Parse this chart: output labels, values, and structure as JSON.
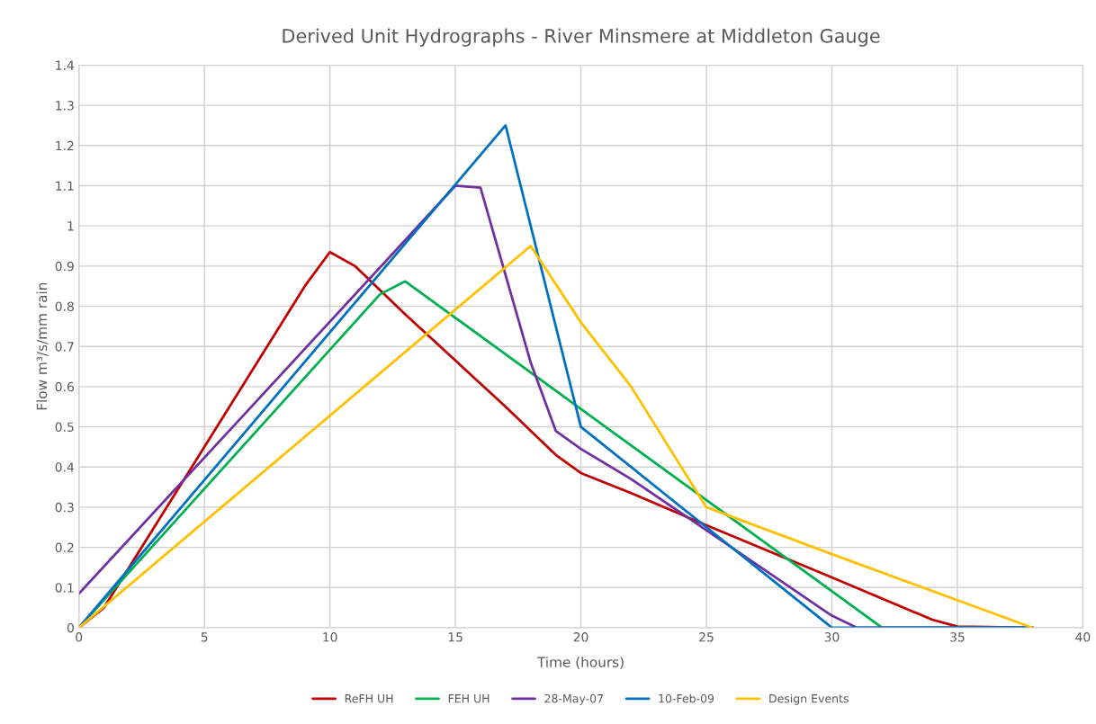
{
  "chart_data": {
    "type": "line",
    "title": "Derived Unit Hydrographs - River Minsmere at Middleton Gauge",
    "xlabel": "Time (hours)",
    "ylabel": "Flow m³/s/mm rain",
    "xlim": [
      0,
      40
    ],
    "xticks": [
      0,
      5,
      10,
      15,
      20,
      25,
      30,
      35,
      40
    ],
    "ylim": [
      0,
      1.4
    ],
    "yticks": [
      0,
      0.1,
      0.2,
      0.3,
      0.4,
      0.5,
      0.6,
      0.7,
      0.8,
      0.9,
      1,
      1.1,
      1.2,
      1.3,
      1.4
    ],
    "grid": true,
    "legend": "bottom",
    "line_style": "solid",
    "series": [
      {
        "name": "ReFH UH",
        "color": "#c00000",
        "x": [
          0,
          1,
          9,
          10,
          11,
          13,
          15,
          17,
          19,
          20,
          22,
          25,
          30,
          34,
          35,
          38
        ],
        "values": [
          0,
          0.05,
          0.85,
          0.935,
          0.9,
          0.78,
          0.665,
          0.55,
          0.43,
          0.385,
          0.335,
          0.255,
          0.125,
          0.02,
          0.003,
          0
        ]
      },
      {
        "name": "FEH UH",
        "color": "#00b050",
        "x": [
          0,
          12,
          13,
          32,
          38
        ],
        "values": [
          0,
          0.83,
          0.862,
          0,
          0
        ]
      },
      {
        "name": "28-May-07",
        "color": "#7030a0",
        "x": [
          0,
          15,
          16,
          18,
          19,
          20,
          22,
          30,
          31,
          38
        ],
        "values": [
          0.085,
          1.1,
          1.095,
          0.66,
          0.49,
          0.445,
          0.37,
          0.03,
          0,
          0
        ]
      },
      {
        "name": "10-Feb-09",
        "color": "#0070c0",
        "x": [
          0,
          17,
          20,
          30,
          38
        ],
        "values": [
          0,
          1.25,
          0.5,
          0,
          0
        ]
      },
      {
        "name": "Design Events",
        "color": "#ffc000",
        "x": [
          0,
          18,
          20,
          22,
          25,
          30,
          38
        ],
        "values": [
          0,
          0.95,
          0.76,
          0.6,
          0.3,
          0.183,
          0
        ]
      }
    ]
  }
}
